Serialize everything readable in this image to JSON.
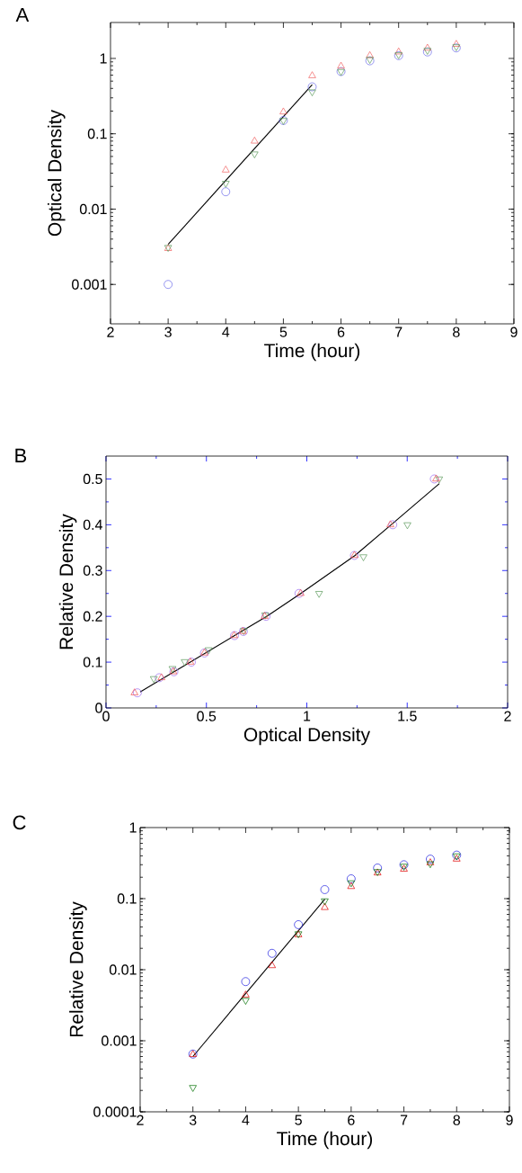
{
  "chart_data": [
    {
      "type": "scatter",
      "title": "A",
      "xlabel": "Time (hour)",
      "ylabel": "Optical Density",
      "log": "y",
      "xlim": [
        2,
        9
      ],
      "ylim": [
        0.0003,
        3
      ],
      "xticks": [
        2,
        3,
        4,
        5,
        6,
        7,
        8,
        9
      ],
      "yticks": [
        0.001,
        0.01,
        0.1,
        1
      ],
      "series": [
        {
          "color": "#6a6aea",
          "marker": "circle",
          "x": [
            3,
            4,
            5,
            5.5,
            6,
            6.5,
            7,
            7.5,
            8
          ],
          "values": [
            0.001,
            0.017,
            0.15,
            0.42,
            0.67,
            0.93,
            1.09,
            1.22,
            1.38
          ]
        },
        {
          "color": "#f06060",
          "marker": "triangle",
          "x": [
            3,
            4,
            4.5,
            5,
            5.5,
            6,
            6.5,
            7,
            7.5,
            8
          ],
          "values": [
            0.003,
            0.033,
            0.08,
            0.195,
            0.59,
            0.79,
            1.09,
            1.22,
            1.37,
            1.54
          ]
        },
        {
          "color": "#5a9a5a",
          "marker": "triangle_down",
          "x": [
            3,
            4,
            4.5,
            5,
            5.5,
            6,
            6.5,
            7,
            7.5,
            8
          ],
          "values": [
            0.0031,
            0.022,
            0.054,
            0.15,
            0.36,
            0.67,
            0.97,
            1.12,
            1.28,
            1.43
          ]
        },
        {
          "type": "line",
          "color": "#000000",
          "marker": "none",
          "x": [
            3,
            5.5
          ],
          "values": [
            0.0034,
            0.45
          ]
        }
      ]
    },
    {
      "type": "scatter",
      "title": "B",
      "xlabel": "Optical Density",
      "ylabel": "Relative Density",
      "xlim": [
        0,
        2
      ],
      "ylim": [
        0,
        0.55
      ],
      "xticks": [
        0,
        0.5,
        1,
        1.5,
        2
      ],
      "yticks": [
        0,
        0.1,
        0.2,
        0.3,
        0.4,
        0.5
      ],
      "series": [
        {
          "color": "#9a6af0",
          "marker": "circle",
          "x": [
            0.156,
            0.265,
            0.338,
            0.425,
            0.49,
            0.64,
            0.684,
            0.797,
            0.961,
            1.237,
            1.428,
            1.635
          ],
          "values": [
            0.033,
            0.066,
            0.079,
            0.1,
            0.12,
            0.158,
            0.167,
            0.2,
            0.25,
            0.333,
            0.4,
            0.5
          ]
        },
        {
          "color": "#5a9a5a",
          "marker": "triangle_down",
          "x": [
            0.238,
            0.331,
            0.392,
            0.511,
            0.686,
            0.793,
            1.061,
            1.282,
            1.501,
            1.659
          ],
          "values": [
            0.064,
            0.086,
            0.101,
            0.127,
            0.169,
            0.203,
            0.25,
            0.33,
            0.4,
            0.5
          ]
        },
        {
          "color": "#f05050",
          "marker": "triangle",
          "x": [
            0.142,
            0.276,
            0.335,
            0.42,
            0.49,
            0.638,
            0.681,
            0.79,
            0.969,
            1.237,
            1.416,
            1.644
          ],
          "values": [
            0.033,
            0.066,
            0.079,
            0.1,
            0.12,
            0.158,
            0.167,
            0.2,
            0.25,
            0.333,
            0.4,
            0.5
          ]
        },
        {
          "type": "line",
          "color": "#000000",
          "marker": "none",
          "x": [
            0.17,
            0.42,
            0.64,
            0.8,
            0.97,
            1.24,
            1.42,
            1.66
          ],
          "values": [
            0.035,
            0.1,
            0.158,
            0.2,
            0.25,
            0.333,
            0.4,
            0.49
          ]
        }
      ]
    },
    {
      "type": "scatter",
      "title": "C",
      "xlabel": "Time (hour)",
      "ylabel": "Relative Density",
      "log": "y",
      "xlim": [
        2,
        9
      ],
      "ylim": [
        0.0001,
        1
      ],
      "xticks": [
        2,
        3,
        4,
        5,
        6,
        7,
        8,
        9
      ],
      "yticks": [
        0.0001,
        0.001,
        0.01,
        0.1,
        1
      ],
      "series": [
        {
          "color": "#2020e0",
          "marker": "circle",
          "x": [
            3,
            4,
            4.5,
            5,
            5.5,
            6,
            6.5,
            7,
            7.5,
            8
          ],
          "values": [
            0.00065,
            0.0068,
            0.017,
            0.043,
            0.134,
            0.19,
            0.27,
            0.3,
            0.36,
            0.41
          ]
        },
        {
          "color": "#e00000",
          "marker": "triangle",
          "x": [
            3,
            4,
            4.5,
            5,
            5.5,
            6,
            6.5,
            7,
            7.5,
            8
          ],
          "values": [
            0.00064,
            0.0044,
            0.0114,
            0.031,
            0.075,
            0.148,
            0.23,
            0.26,
            0.32,
            0.36
          ]
        },
        {
          "color": "#007000",
          "marker": "triangle_down",
          "x": [
            3,
            4,
            5,
            5.5,
            6,
            6.5,
            7,
            7.5,
            8
          ],
          "values": [
            0.00022,
            0.0037,
            0.032,
            0.093,
            0.167,
            0.24,
            0.286,
            0.31,
            0.4
          ]
        },
        {
          "type": "line",
          "color": "#000000",
          "marker": "none",
          "x": [
            3,
            5.5
          ],
          "values": [
            0.0006,
            0.098
          ]
        }
      ]
    }
  ]
}
